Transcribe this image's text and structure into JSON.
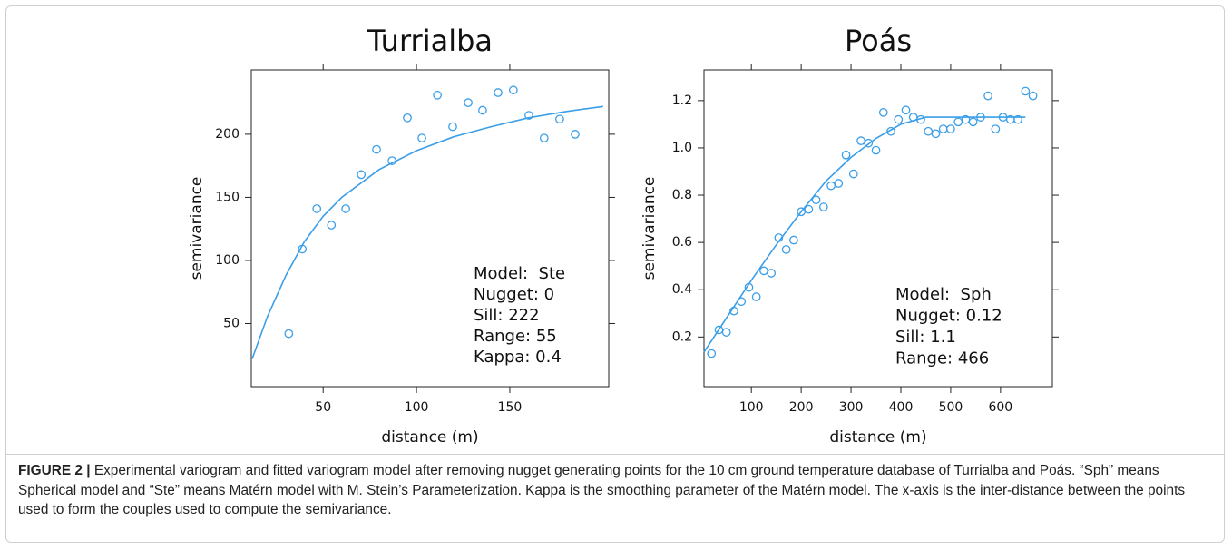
{
  "chart_data": [
    {
      "type": "scatter",
      "title": "Turrialba",
      "x_label": "distance (m)",
      "y_label": "semivariance",
      "xlim": [
        11.5,
        203
      ],
      "ylim": [
        0,
        251
      ],
      "xticks": [
        50,
        100,
        150
      ],
      "yticks": [
        50,
        100,
        150,
        200
      ],
      "series": [
        {
          "type": "scatter",
          "color": "#3a9ee8",
          "x": [
            31.6,
            38.8,
            46.6,
            54.4,
            62.1,
            70.4,
            78.6,
            86.9,
            95.1,
            102.9,
            111.2,
            119.4,
            127.7,
            135.4,
            143.7,
            151.9,
            160.2,
            168.4,
            176.7,
            185
          ],
          "values": [
            42,
            109,
            141,
            128,
            141,
            168,
            188,
            179,
            213,
            197,
            231,
            206,
            225,
            219,
            233,
            235,
            215,
            197,
            212,
            200
          ]
        },
        {
          "type": "line",
          "color": "#3a9ee8",
          "x": [
            12,
            20,
            30,
            40,
            50,
            60,
            80,
            100,
            120,
            140,
            160,
            180,
            200
          ],
          "values": [
            22,
            55,
            88,
            115,
            135,
            150,
            172,
            187,
            198,
            206,
            213,
            218,
            222
          ]
        }
      ],
      "annotations": [
        "Model:  Ste",
        "Nugget: 0",
        "Sill: 222",
        "Range: 55",
        "Kappa: 0.4"
      ]
    },
    {
      "type": "scatter",
      "title": "Poás",
      "x_label": "distance (m)",
      "y_label": "semivariance",
      "xlim": [
        5,
        704
      ],
      "ylim": [
        -0.01,
        1.33
      ],
      "xticks": [
        100,
        200,
        300,
        400,
        500,
        600
      ],
      "yticks": [
        {
          "value": 0.2,
          "label": "0.2"
        },
        {
          "value": 0.4,
          "label": "0.4"
        },
        {
          "value": 0.6,
          "label": "0.6"
        },
        {
          "value": 0.8,
          "label": "0.8"
        },
        {
          "value": 1,
          "label": "1.0"
        },
        {
          "value": 1.2,
          "label": "1.2"
        }
      ],
      "series": [
        {
          "type": "scatter",
          "color": "#3a9ee8",
          "x": [
            20,
            35,
            50,
            65,
            80,
            95,
            110,
            125,
            140,
            155,
            170,
            185,
            200,
            215,
            230,
            245,
            260,
            275,
            290,
            305,
            320,
            335,
            350,
            365,
            380,
            395,
            410,
            425,
            440,
            455,
            470,
            485,
            500,
            515,
            530,
            545,
            560,
            575,
            590,
            605,
            620,
            635,
            650,
            665
          ],
          "values": [
            0.13,
            0.23,
            0.22,
            0.31,
            0.35,
            0.41,
            0.37,
            0.48,
            0.47,
            0.62,
            0.57,
            0.61,
            0.73,
            0.74,
            0.78,
            0.75,
            0.84,
            0.85,
            0.97,
            0.89,
            1.03,
            1.02,
            0.99,
            1.15,
            1.07,
            1.12,
            1.16,
            1.13,
            1.12,
            1.07,
            1.06,
            1.08,
            1.08,
            1.11,
            1.12,
            1.11,
            1.13,
            1.22,
            1.08,
            1.13,
            1.12,
            1.12,
            1.24,
            1.22
          ]
        },
        {
          "type": "line",
          "color": "#3a9ee8",
          "x": [
            5,
            50,
            100,
            150,
            200,
            250,
            300,
            350,
            400,
            450,
            466,
            650
          ],
          "values": [
            0.136,
            0.28,
            0.44,
            0.59,
            0.73,
            0.86,
            0.96,
            1.04,
            1.1,
            1.13,
            1.13,
            1.13
          ]
        }
      ],
      "annotations": [
        "Model:  Sph",
        "Nugget: 0.12",
        "Sill: 1.1",
        "Range: 466"
      ]
    }
  ],
  "caption": {
    "label": "FIGURE 2 |",
    "text": "Experimental variogram and fitted variogram model after removing nugget generating points for the 10 cm ground temperature database of Turrialba and Poás. “Sph” means Spherical model and “Ste” means Matérn model with M. Stein’s Parameterization. Kappa is the smoothing parameter of the Matérn model. The x-axis is the inter-distance between the points used to form the couples used to compute the semivariance."
  }
}
